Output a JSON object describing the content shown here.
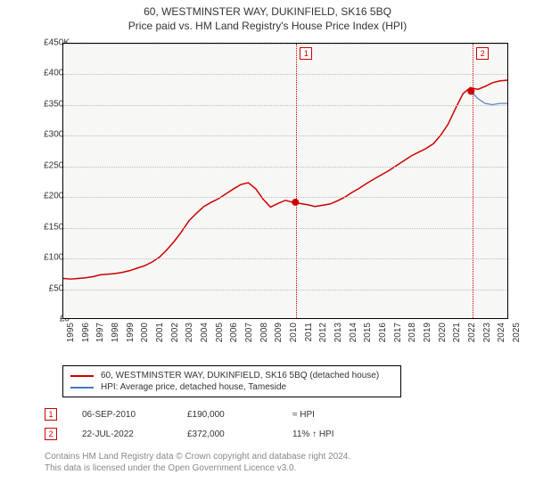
{
  "title": "60, WESTMINSTER WAY, DUKINFIELD, SK16 5BQ",
  "subtitle": "Price paid vs. HM Land Registry's House Price Index (HPI)",
  "chart": {
    "type": "line",
    "background_color": "#f7f7f5",
    "grid_color": "#bbbbbb",
    "border_color": "#000000",
    "y": {
      "min": 0,
      "max": 450000,
      "step": 50000,
      "labels": [
        "£0",
        "£50K",
        "£100K",
        "£150K",
        "£200K",
        "£250K",
        "£300K",
        "£350K",
        "£400K",
        "£450K"
      ]
    },
    "x": {
      "min": 1995,
      "max": 2025,
      "step": 1,
      "labels": [
        "1995",
        "1996",
        "1997",
        "1998",
        "1999",
        "2000",
        "2001",
        "2002",
        "2003",
        "2004",
        "2005",
        "2006",
        "2007",
        "2008",
        "2009",
        "2010",
        "2011",
        "2012",
        "2013",
        "2014",
        "2015",
        "2016",
        "2017",
        "2018",
        "2019",
        "2020",
        "2021",
        "2022",
        "2023",
        "2024",
        "2025"
      ]
    },
    "series": [
      {
        "name": "60, WESTMINSTER WAY, DUKINFIELD, SK16 5BQ (detached house)",
        "color": "#cc0000",
        "line_width": 1.5,
        "data": [
          [
            1995,
            65000
          ],
          [
            1995.5,
            64000
          ],
          [
            1996,
            65000
          ],
          [
            1996.5,
            66000
          ],
          [
            1997,
            68000
          ],
          [
            1997.5,
            71000
          ],
          [
            1998,
            72000
          ],
          [
            1998.5,
            73000
          ],
          [
            1999,
            75000
          ],
          [
            1999.5,
            78000
          ],
          [
            2000,
            82000
          ],
          [
            2000.5,
            86000
          ],
          [
            2001,
            92000
          ],
          [
            2001.5,
            100000
          ],
          [
            2002,
            112000
          ],
          [
            2002.5,
            126000
          ],
          [
            2003,
            142000
          ],
          [
            2003.5,
            160000
          ],
          [
            2004,
            172000
          ],
          [
            2004.5,
            183000
          ],
          [
            2005,
            190000
          ],
          [
            2005.5,
            196000
          ],
          [
            2006,
            204000
          ],
          [
            2006.5,
            212000
          ],
          [
            2007,
            219000
          ],
          [
            2007.5,
            222000
          ],
          [
            2008,
            212000
          ],
          [
            2008.5,
            195000
          ],
          [
            2009,
            182000
          ],
          [
            2009.5,
            188000
          ],
          [
            2010,
            193000
          ],
          [
            2010.5,
            190000
          ],
          [
            2011,
            188000
          ],
          [
            2011.5,
            186000
          ],
          [
            2012,
            183000
          ],
          [
            2012.5,
            185000
          ],
          [
            2013,
            187000
          ],
          [
            2013.5,
            192000
          ],
          [
            2014,
            198000
          ],
          [
            2014.5,
            206000
          ],
          [
            2015,
            213000
          ],
          [
            2015.5,
            221000
          ],
          [
            2016,
            228000
          ],
          [
            2016.5,
            235000
          ],
          [
            2017,
            242000
          ],
          [
            2017.5,
            250000
          ],
          [
            2018,
            258000
          ],
          [
            2018.5,
            266000
          ],
          [
            2019,
            272000
          ],
          [
            2019.5,
            278000
          ],
          [
            2020,
            286000
          ],
          [
            2020.5,
            300000
          ],
          [
            2021,
            318000
          ],
          [
            2021.5,
            344000
          ],
          [
            2022,
            368000
          ],
          [
            2022.5,
            378000
          ],
          [
            2023,
            375000
          ],
          [
            2023.5,
            380000
          ],
          [
            2024,
            386000
          ],
          [
            2024.5,
            389000
          ],
          [
            2025,
            390000
          ]
        ]
      },
      {
        "name": "HPI: Average price, detached house, Tameside",
        "color": "#4a78c4",
        "line_width": 1.2,
        "data": [
          [
            2022.55,
            372000
          ],
          [
            2023,
            360000
          ],
          [
            2023.5,
            352000
          ],
          [
            2024,
            350000
          ],
          [
            2024.5,
            352000
          ],
          [
            2025,
            352000
          ]
        ]
      }
    ],
    "sale_markers": [
      {
        "n": "1",
        "year": 2010.68,
        "price": 190000
      },
      {
        "n": "2",
        "year": 2022.55,
        "price": 372000
      }
    ]
  },
  "legend": {
    "items": [
      {
        "label": "60, WESTMINSTER WAY, DUKINFIELD, SK16 5BQ (detached house)",
        "color": "#cc0000"
      },
      {
        "label": "HPI: Average price, detached house, Tameside",
        "color": "#4a78c4"
      }
    ]
  },
  "sales": [
    {
      "n": "1",
      "date": "06-SEP-2010",
      "price": "£190,000",
      "delta": "≈ HPI"
    },
    {
      "n": "2",
      "date": "22-JUL-2022",
      "price": "£372,000",
      "delta": "11% ↑ HPI"
    }
  ],
  "footer": {
    "line1": "Contains HM Land Registry data © Crown copyright and database right 2024.",
    "line2": "This data is licensed under the Open Government Licence v3.0."
  }
}
